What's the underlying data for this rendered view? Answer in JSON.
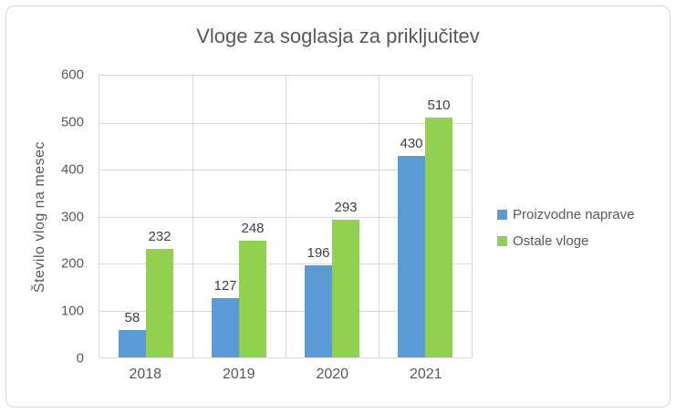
{
  "chart_data": {
    "type": "bar",
    "title": "Vloge za soglasja za priključitev",
    "categories": [
      "2018",
      "2019",
      "2020",
      "2021"
    ],
    "series": [
      {
        "name": "Proizvodne naprave",
        "color": "#5B9BD5",
        "values": [
          58,
          127,
          196,
          430
        ]
      },
      {
        "name": "Ostale vloge",
        "color": "#92D050",
        "values": [
          232,
          248,
          293,
          510
        ]
      }
    ],
    "xlabel": "",
    "ylabel": "Število vlog na mesec",
    "ylim": [
      0,
      600
    ],
    "yticks": [
      0,
      100,
      200,
      300,
      400,
      500,
      600
    ],
    "grid": true,
    "data_labels": true,
    "legend_position": "right"
  },
  "colors": {
    "background": "#FFFFFF",
    "frame_border": "#D6D6D6",
    "gridline": "#D9D9D9",
    "title_text": "#595959",
    "axis_text": "#595959",
    "data_label_text": "#404040"
  }
}
